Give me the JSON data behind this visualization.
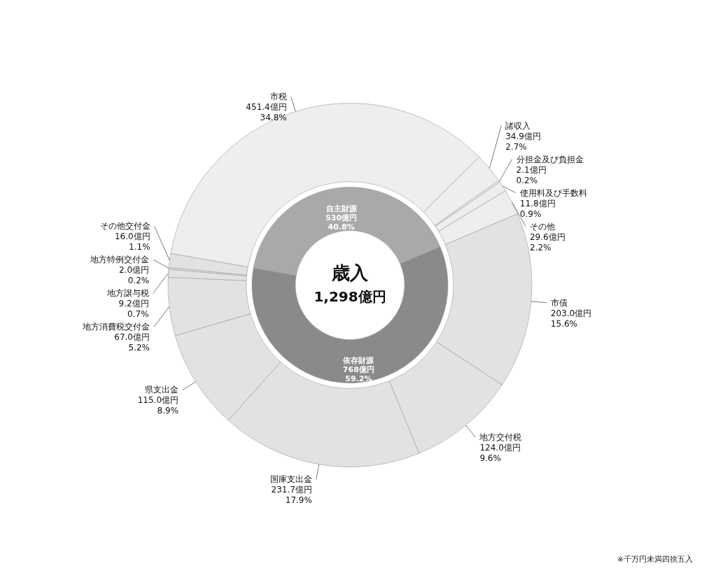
{
  "chart_data": [
    {
      "type": "donut",
      "categories": [
        "市税",
        "諸収入",
        "分担金及び負担金",
        "使用料及び手数料",
        "その他",
        "市債",
        "地方交付税",
        "国庫支出金",
        "県支出金",
        "地方消費税交付金",
        "地方譲与税",
        "地方特例交付金",
        "その他交付金"
      ],
      "values": [
        451.4,
        34.9,
        2.1,
        11.8,
        29.6,
        203.0,
        124.0,
        231.7,
        115.0,
        67.0,
        9.2,
        2.0,
        16.0
      ],
      "value_labels": [
        "451.4億円 34.8%",
        "34.9億円 2.7%",
        "2.1億円 0.2%",
        "11.8億円 0.9%",
        "29.6億円 2.2%",
        "203.0億円 15.6%",
        "124.0億円 9.6%",
        "231.7億円 17.9%",
        "115.0億円 8.9%",
        "67.0億円 5.2%",
        "9.2億円 0.7%",
        "2.0億円 0.2%",
        "16.0億円 1.1%"
      ],
      "colors": [
        "#eeeeee",
        "#eeeeee",
        "#eeeeee",
        "#eeeeee",
        "#eeeeee",
        "#e2e2e2",
        "#e2e2e2",
        "#e2e2e2",
        "#e2e2e2",
        "#e2e2e2",
        "#e2e2e2",
        "#e2e2e2",
        "#e2e2e2"
      ],
      "annotations": [
        "※千万円未満四捨五入"
      ]
    },
    {
      "type": "donut",
      "categories": [
        "自主財源",
        "依存財源"
      ],
      "values": [
        530,
        768
      ],
      "value_labels": [
        "530億円 40.8%",
        "768億円 59.2%"
      ],
      "colors": [
        "#a9a9a9",
        "#8a8a8a"
      ],
      "annotations": [
        "歳入",
        "1,298億円"
      ]
    }
  ]
}
